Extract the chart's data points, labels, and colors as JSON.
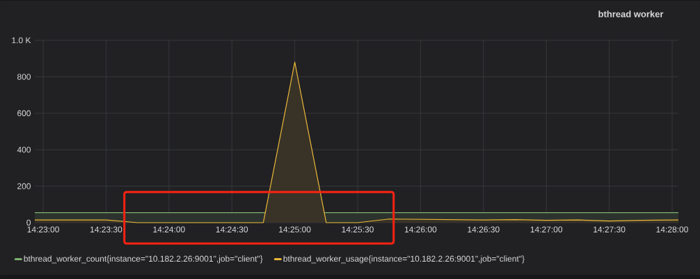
{
  "chart_data": {
    "type": "area",
    "title": "bthread worker",
    "xlim": [
      14.382222,
      14.4675
    ],
    "ylim": [
      0,
      1000
    ],
    "xticks": [
      {
        "value": 14.383333,
        "label": "14:23:00"
      },
      {
        "value": 14.391667,
        "label": "14:23:30"
      },
      {
        "value": 14.4,
        "label": "14:24:00"
      },
      {
        "value": 14.408333,
        "label": "14:24:30"
      },
      {
        "value": 14.416667,
        "label": "14:25:00"
      },
      {
        "value": 14.425,
        "label": "14:25:30"
      },
      {
        "value": 14.433333,
        "label": "14:26:00"
      },
      {
        "value": 14.441667,
        "label": "14:26:30"
      },
      {
        "value": 14.45,
        "label": "14:27:00"
      },
      {
        "value": 14.458333,
        "label": "14:27:30"
      },
      {
        "value": 14.466667,
        "label": "14:28:00"
      }
    ],
    "yticks": [
      0,
      200,
      400,
      600,
      800,
      {
        "value": 1000,
        "label": "1.0 K"
      }
    ],
    "grid": true,
    "legend": "bottom",
    "series": [
      {
        "name": "bthread_worker_count{instance=\"10.182.2.26:9001\",job=\"client\"}",
        "color": "#7eb26d",
        "x": [
          14.382222,
          14.4675
        ],
        "values": [
          55,
          55
        ]
      },
      {
        "name": "bthread_worker_usage{instance=\"10.182.2.26:9001\",job=\"client\"}",
        "color": "#eab839",
        "x": [
          14.382222,
          14.391667,
          14.395833,
          14.4125,
          14.416667,
          14.420833,
          14.425,
          14.429167,
          14.441667,
          14.445833,
          14.45,
          14.454167,
          14.458333,
          14.4625,
          14.4675
        ],
        "values": [
          15,
          15,
          0,
          0,
          880,
          0,
          0,
          20,
          15,
          17,
          13,
          15,
          9,
          13,
          15
        ]
      }
    ]
  }
}
